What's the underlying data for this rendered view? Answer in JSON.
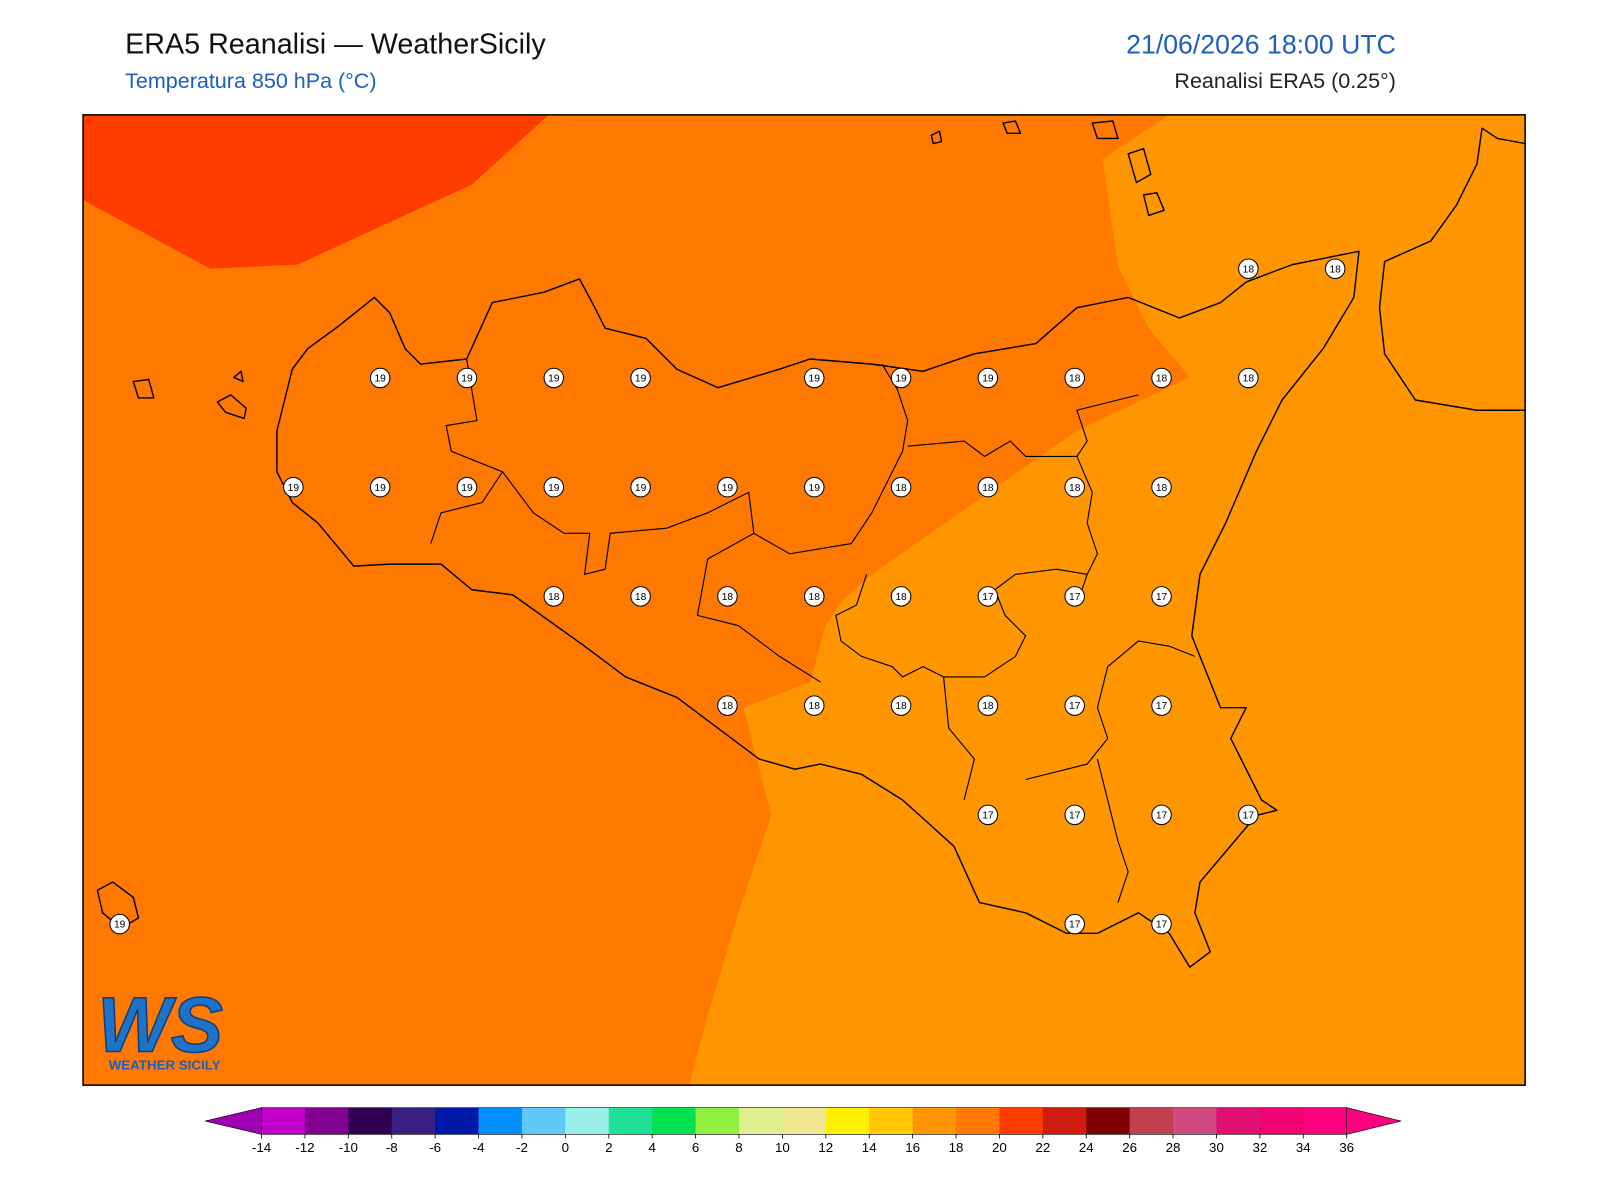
{
  "header": {
    "title": "ERA5 Reanalisi — WeatherSicily",
    "subtitle": "Temperatura 850 hPa (°C)",
    "date": "21/06/2026 18:00 UTC",
    "source": "Reanalisi ERA5 (0.25°)"
  },
  "points": {
    "values": [
      18,
      18,
      19,
      19,
      19,
      19,
      19,
      19,
      19,
      18,
      18,
      18,
      19,
      19,
      19,
      19,
      19,
      19,
      19,
      18,
      18,
      18,
      18,
      18,
      18,
      18,
      18,
      18,
      17,
      17,
      17,
      18,
      18,
      18,
      18,
      17,
      17,
      17,
      17,
      17,
      17,
      19,
      17,
      17
    ]
  },
  "colorbar": {
    "ticks": [
      -14,
      -12,
      -10,
      -8,
      -6,
      -4,
      -2,
      0,
      2,
      4,
      6,
      8,
      10,
      12,
      14,
      16,
      18,
      20,
      22,
      24,
      26,
      28,
      30,
      32,
      34,
      36
    ],
    "colors": [
      "#c000c8",
      "#800090",
      "#300050",
      "#3a2080",
      "#0018a8",
      "#0090ff",
      "#60c8f8",
      "#98f0e8",
      "#20e098",
      "#00e050",
      "#90f040",
      "#e0f090",
      "#f0e890",
      "#fff000",
      "#ffc800",
      "#ff9600",
      "#ff7800",
      "#ff3c00",
      "#d01c10",
      "#800000",
      "#c04050",
      "#d04880",
      "#e01070",
      "#f00070",
      "#ff0080"
    ],
    "under_color": "#a000b4",
    "over_color": "#ff0080"
  },
  "logo": {
    "mark": "WS",
    "name": "WEATHER SICILY"
  }
}
